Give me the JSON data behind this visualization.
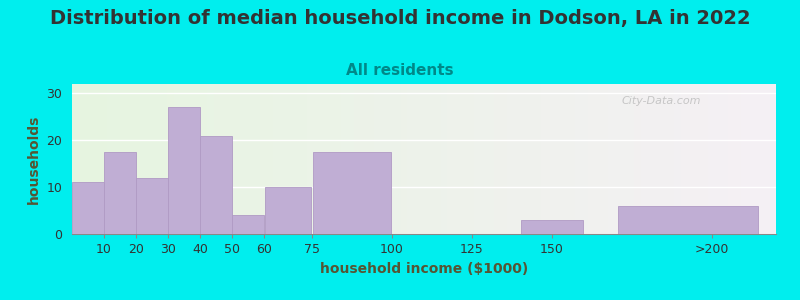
{
  "title": "Distribution of median household income in Dodson, LA in 2022",
  "subtitle": "All residents",
  "xlabel": "household income ($1000)",
  "ylabel": "households",
  "background_outer": "#00EEEE",
  "background_plot_left": "#e6f5e0",
  "background_plot_right": "#f5f0f5",
  "bar_color": "#c0aed4",
  "bar_edge_color": "#b09ac4",
  "values": [
    11,
    17.5,
    12,
    27,
    21,
    4,
    10,
    17.5,
    0,
    3,
    6
  ],
  "yticks": [
    0,
    10,
    20,
    30
  ],
  "title_fontsize": 14,
  "subtitle_fontsize": 11,
  "axis_label_fontsize": 10,
  "tick_fontsize": 9,
  "title_color": "#333333",
  "subtitle_color": "#008888",
  "axis_label_color": "#555533",
  "watermark": "City-Data.com",
  "tick_labels": [
    "10",
    "20",
    "30",
    "40",
    "50",
    "60",
    "75",
    "100",
    "125",
    "150",
    ">200"
  ],
  "bar_left": [
    0,
    10,
    20,
    30,
    40,
    50,
    60,
    75,
    100,
    140,
    170
  ],
  "bar_right": [
    10,
    20,
    30,
    40,
    50,
    60,
    75,
    100,
    125,
    160,
    215
  ],
  "tick_positions": [
    10,
    20,
    30,
    40,
    50,
    60,
    75,
    100,
    125,
    150,
    200
  ],
  "xlim": [
    0,
    220
  ],
  "ylim": [
    0,
    32
  ]
}
